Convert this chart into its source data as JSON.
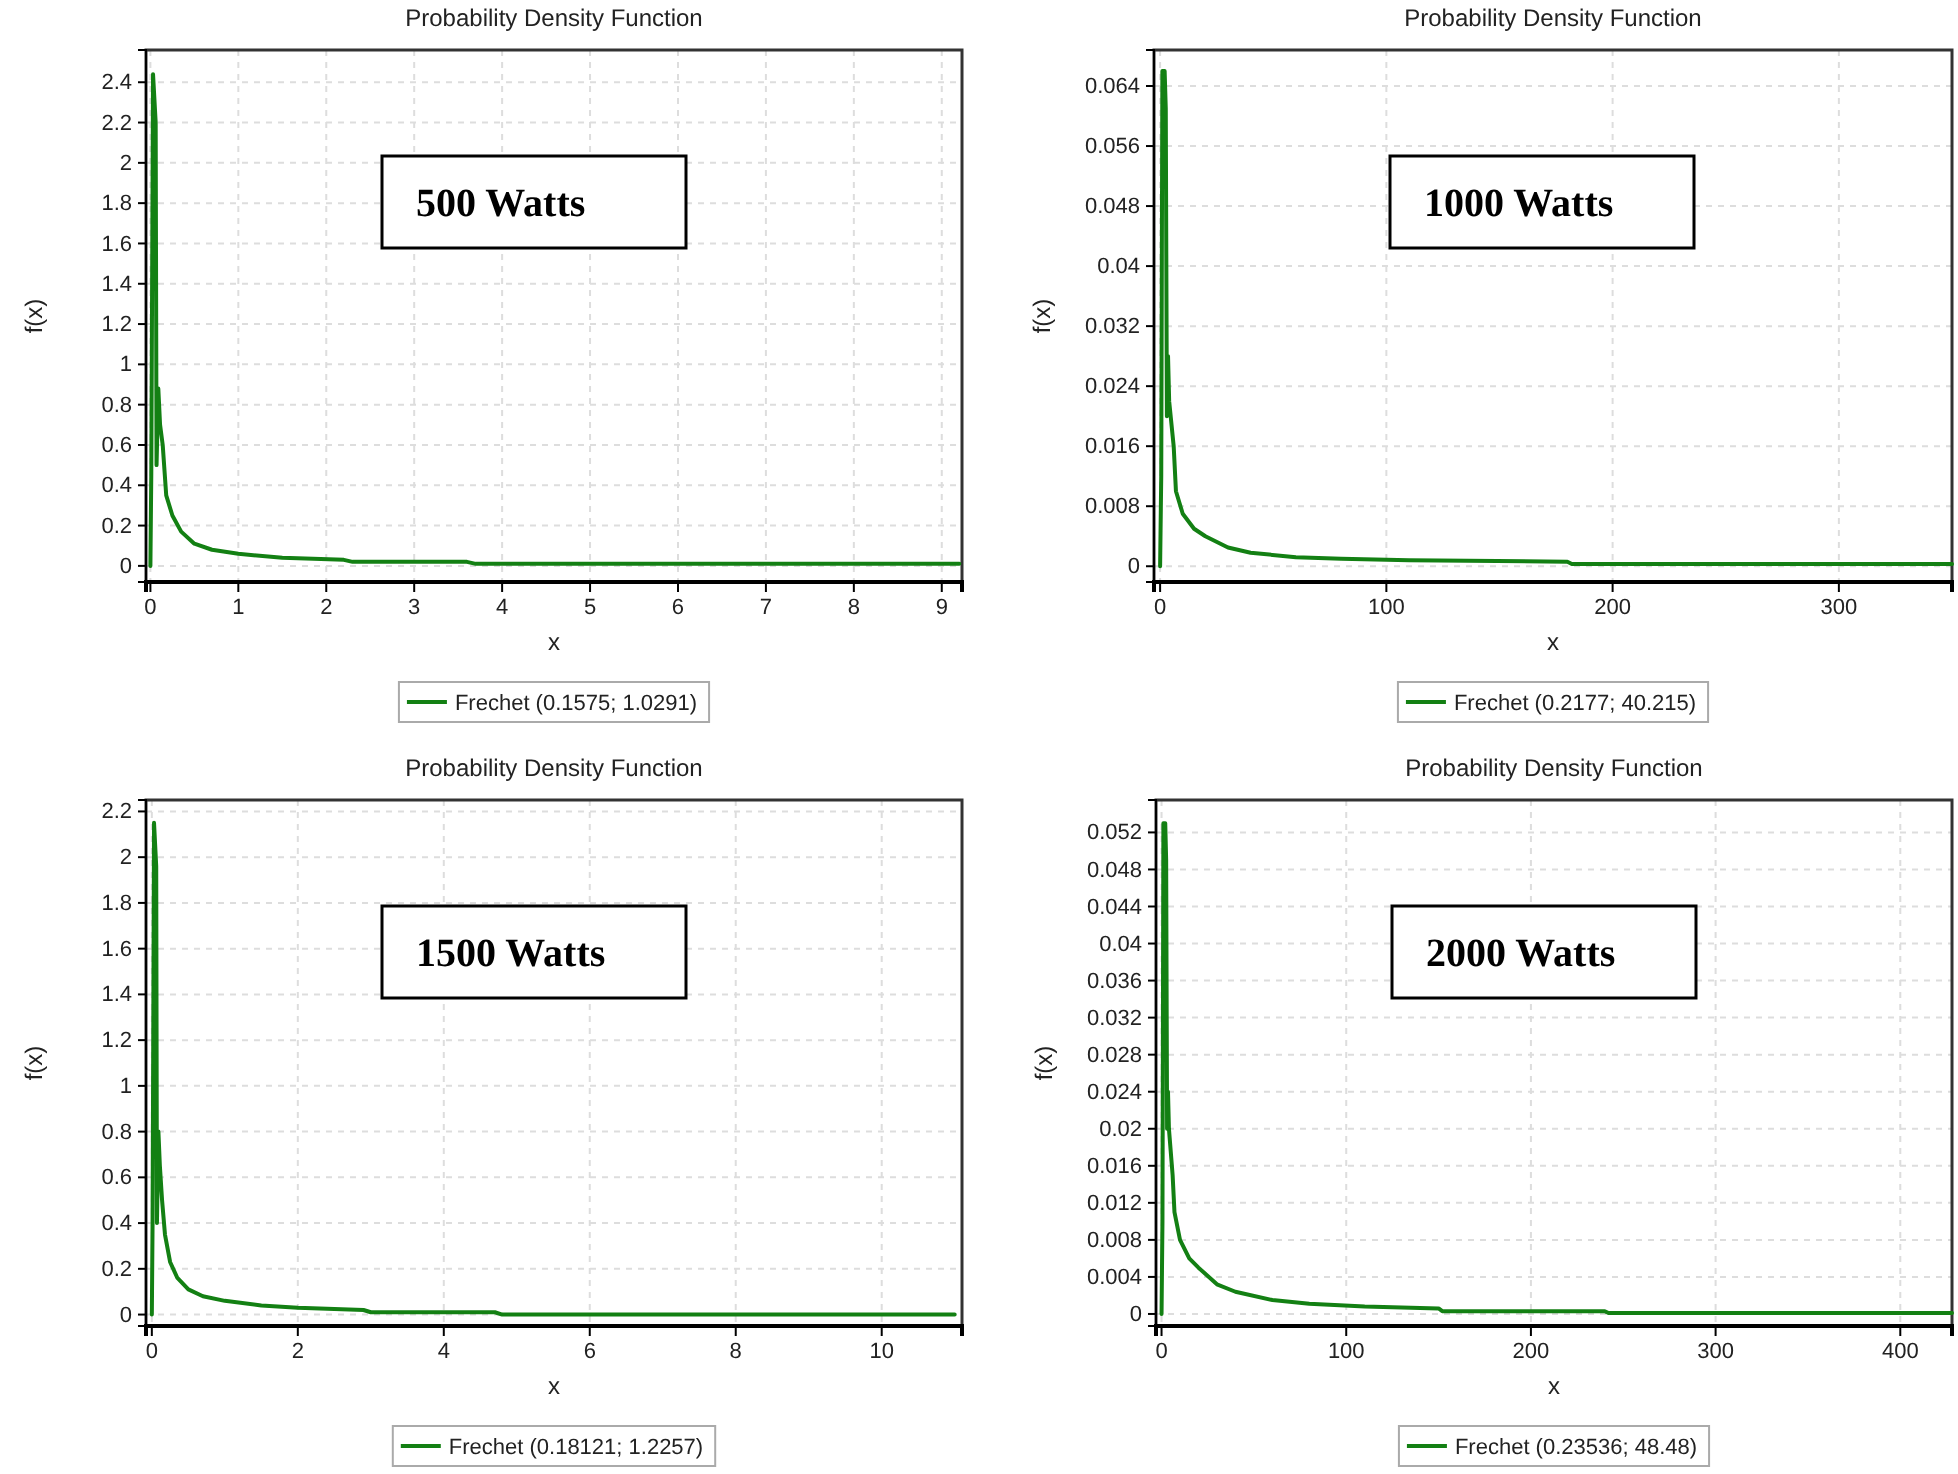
{
  "chart_data": [
    {
      "type": "line",
      "title": "Probability Density Function",
      "xlabel": "x",
      "ylabel": "f(x)",
      "annotations": [
        "500 Watts"
      ],
      "xlim": [
        -0.05,
        9.23
      ],
      "ylim": [
        -0.08,
        2.56
      ],
      "xticks": [
        0,
        1,
        2,
        3,
        4,
        5,
        6,
        7,
        8,
        9
      ],
      "yticks": [
        0,
        0.2,
        0.4,
        0.6,
        0.8,
        1,
        1.2,
        1.4,
        1.6,
        1.8,
        2,
        2.2,
        2.4
      ],
      "grid": true,
      "legend": "bottom",
      "line_style": "solid",
      "series": [
        {
          "name": "Frechet  (0.1575; 1.0291)",
          "color": "#138013",
          "x": [
            0,
            0.01,
            0.03,
            0.06,
            0.07,
            0.09,
            0.11,
            0.14,
            0.18,
            0.25,
            0.35,
            0.5,
            0.7,
            1,
            1.5,
            2.2,
            2.3,
            3.6,
            3.7,
            9.2
          ],
          "values": [
            0,
            0.45,
            2.44,
            2.2,
            0.5,
            0.88,
            0.7,
            0.6,
            0.35,
            0.25,
            0.17,
            0.11,
            0.08,
            0.06,
            0.04,
            0.03,
            0.02,
            0.02,
            0.01,
            0.01
          ]
        }
      ]
    },
    {
      "type": "line",
      "title": "Probability Density Function",
      "xlabel": "x",
      "ylabel": "f(x)",
      "annotations": [
        "1000 Watts"
      ],
      "xlim": [
        -2.7,
        350
      ],
      "ylim": [
        -0.0021,
        0.0688
      ],
      "xticks": [
        0,
        100,
        200,
        300
      ],
      "yticks": [
        0,
        0.008,
        0.016,
        0.024,
        0.032,
        0.04,
        0.048,
        0.056,
        0.064
      ],
      "grid": true,
      "legend": "bottom",
      "line_style": "solid",
      "series": [
        {
          "name": "Frechet  (0.2177; 40.215)",
          "color": "#138013",
          "x": [
            0,
            0.5,
            1,
            2,
            2.5,
            3,
            3.5,
            4,
            6,
            7,
            10,
            15,
            20,
            30,
            40,
            60,
            80,
            110,
            180,
            182,
            350
          ],
          "values": [
            0,
            0.012,
            0.066,
            0.066,
            0.061,
            0.02,
            0.028,
            0.022,
            0.016,
            0.01,
            0.007,
            0.005,
            0.004,
            0.0025,
            0.0018,
            0.0012,
            0.001,
            0.0008,
            0.0006,
            0.0003,
            0.0003
          ]
        }
      ]
    },
    {
      "type": "line",
      "title": "Probability Density Function",
      "xlabel": "x",
      "ylabel": "f(x)",
      "annotations": [
        "1500 Watts"
      ],
      "xlim": [
        -0.08,
        11.1
      ],
      "ylim": [
        -0.05,
        2.25
      ],
      "xticks": [
        0,
        2,
        4,
        6,
        8,
        10
      ],
      "yticks": [
        0,
        0.2,
        0.4,
        0.6,
        0.8,
        1,
        1.2,
        1.4,
        1.6,
        1.8,
        2,
        2.2
      ],
      "grid": true,
      "legend": "bottom",
      "line_style": "solid",
      "series": [
        {
          "name": "Frechet  (0.18121; 1.2257)",
          "color": "#138013",
          "x": [
            0,
            0.01,
            0.03,
            0.06,
            0.07,
            0.09,
            0.11,
            0.14,
            0.18,
            0.25,
            0.35,
            0.5,
            0.7,
            1,
            1.5,
            2,
            2.9,
            3,
            4.7,
            4.8,
            11
          ],
          "values": [
            0,
            0.4,
            2.15,
            1.96,
            0.4,
            0.8,
            0.65,
            0.5,
            0.35,
            0.23,
            0.16,
            0.11,
            0.08,
            0.06,
            0.04,
            0.03,
            0.02,
            0.01,
            0.01,
            0,
            0
          ]
        }
      ]
    },
    {
      "type": "line",
      "title": "Probability Density Function",
      "xlabel": "x",
      "ylabel": "f(x)",
      "annotations": [
        "2000 Watts"
      ],
      "xlim": [
        -3,
        428
      ],
      "ylim": [
        -0.0013,
        0.0555
      ],
      "xticks": [
        0,
        100,
        200,
        300,
        400
      ],
      "yticks": [
        0,
        0.004,
        0.008,
        0.012,
        0.016,
        0.02,
        0.024,
        0.028,
        0.032,
        0.036,
        0.04,
        0.044,
        0.048,
        0.052
      ],
      "grid": true,
      "legend": "bottom",
      "line_style": "solid",
      "series": [
        {
          "name": "Frechet  (0.23536; 48.48)",
          "color": "#138013",
          "x": [
            0,
            0.5,
            1,
            2,
            2.5,
            3,
            3.5,
            4,
            6,
            7,
            10,
            15,
            20,
            30,
            40,
            60,
            80,
            110,
            150,
            152,
            240,
            242,
            428
          ],
          "values": [
            0,
            0.01,
            0.053,
            0.053,
            0.049,
            0.02,
            0.024,
            0.02,
            0.015,
            0.011,
            0.008,
            0.006,
            0.005,
            0.0032,
            0.0024,
            0.0015,
            0.0011,
            0.0008,
            0.0006,
            0.0003,
            0.0003,
            0.0001,
            0.0001
          ]
        }
      ]
    }
  ]
}
